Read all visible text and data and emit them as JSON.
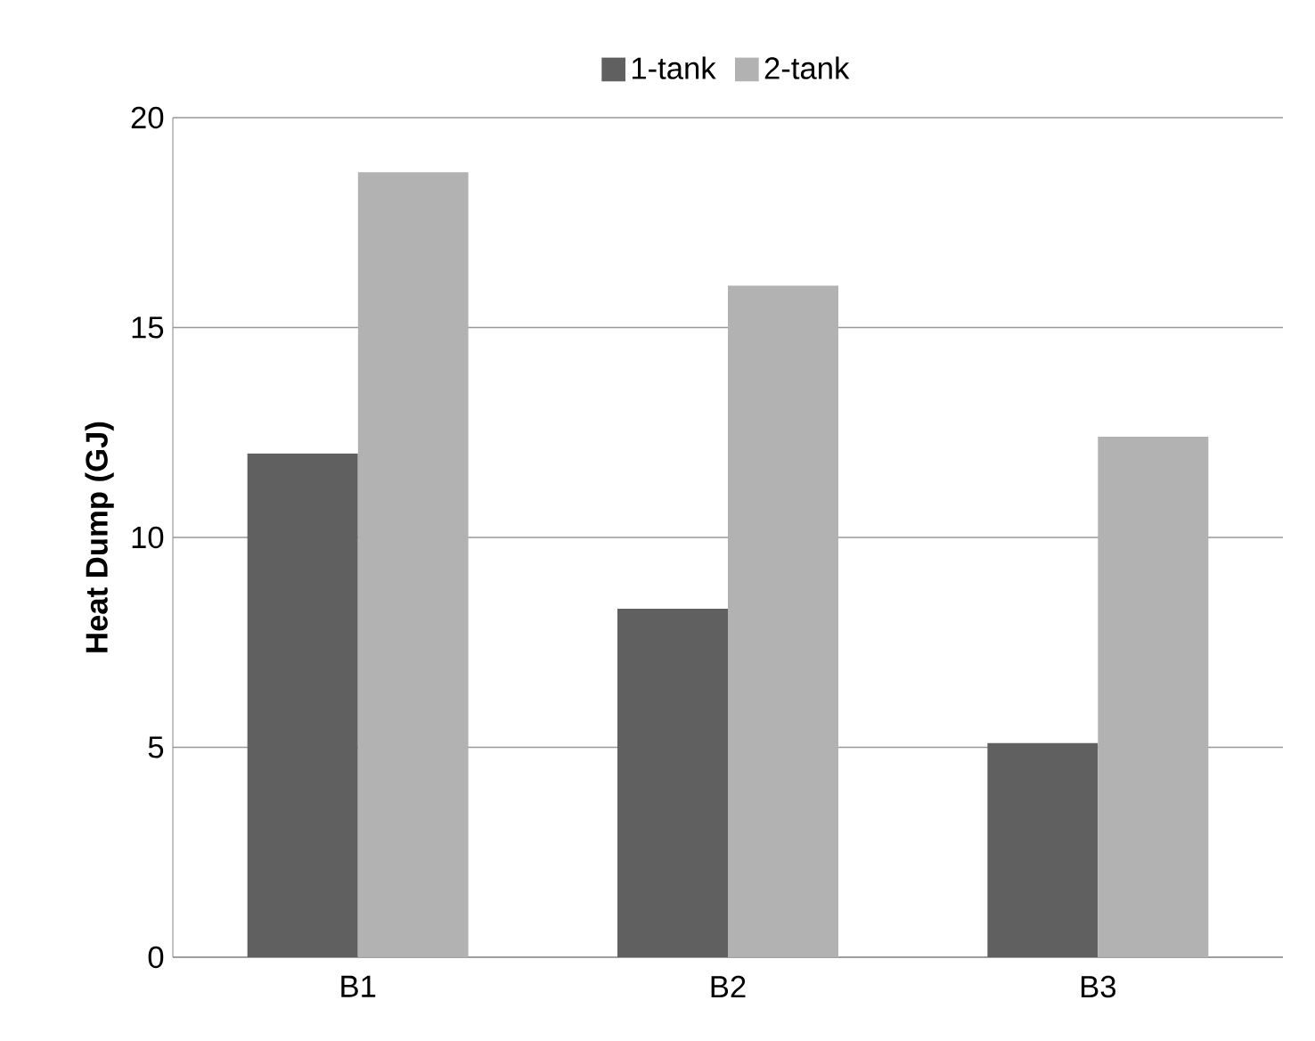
{
  "chart_data": {
    "type": "bar",
    "ylabel": "Heat Dump (GJ)",
    "categories": [
      "B1",
      "B2",
      "B3"
    ],
    "series": [
      {
        "name": "1-tank",
        "color": "#606060",
        "values": [
          12.0,
          8.3,
          5.1
        ]
      },
      {
        "name": "2-tank",
        "color": "#b2b2b2",
        "values": [
          18.7,
          16.0,
          12.4
        ]
      }
    ],
    "ylim": [
      0,
      20
    ],
    "yticks": [
      0,
      5,
      10,
      15,
      20
    ],
    "grid": "y",
    "legend": "top"
  }
}
